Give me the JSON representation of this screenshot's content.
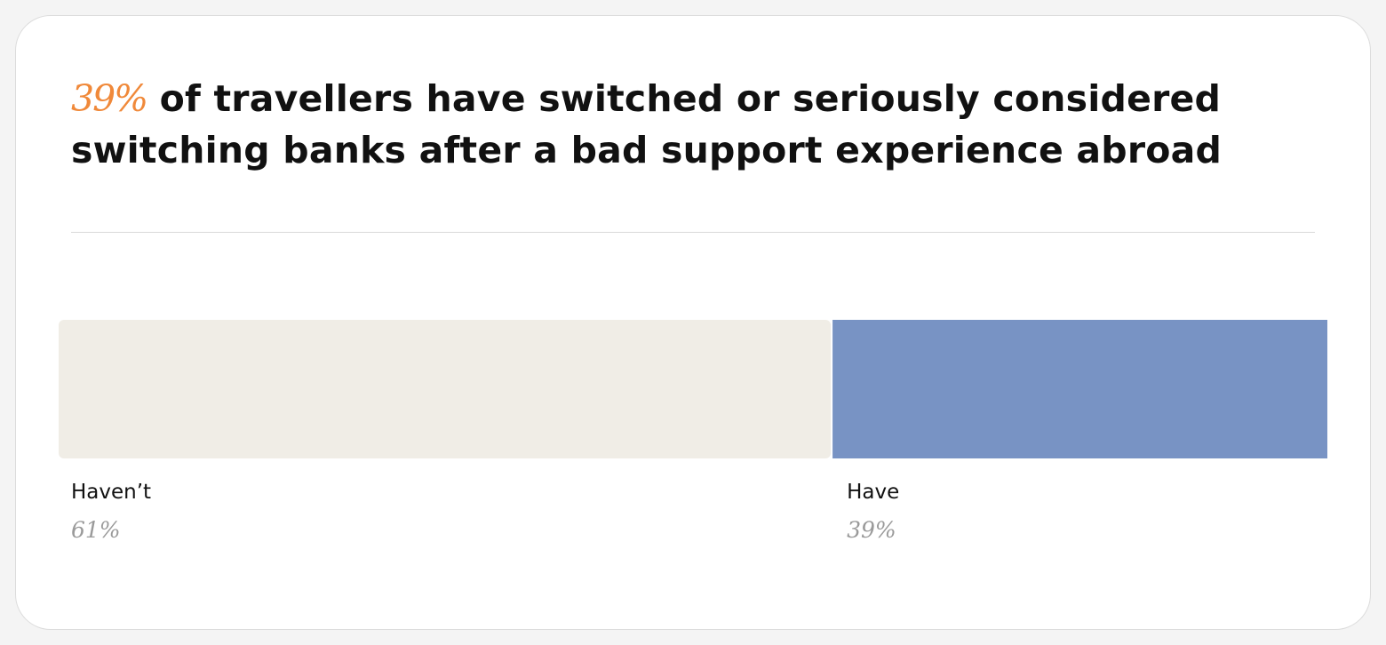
{
  "chart_data": {
    "type": "stacked-bar",
    "title_highlight": "39%",
    "title": "of travellers have switched or seriously considered switching banks after a bad support experience abroad",
    "series": [
      {
        "name": "Haven’t",
        "color": "#f0ede6",
        "values": [
          61
        ],
        "value_labels": [
          "61%"
        ]
      },
      {
        "name": "Have",
        "color": "#7893c4",
        "values": [
          39
        ],
        "value_labels": [
          "39%"
        ]
      }
    ]
  }
}
